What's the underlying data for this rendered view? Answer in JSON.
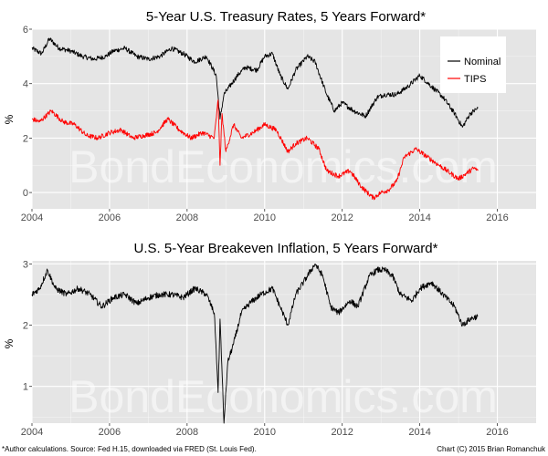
{
  "footer": {
    "source": "*Author calculations. Source: Fed H.15, downloaded via FRED (St. Louis Fed).",
    "credit": "Chart (C) 2015 Brian Romanchuk"
  },
  "colors": {
    "panel": "#e5e5e5",
    "grid": "#ffffff",
    "nominal": "#000000",
    "tips": "#ff0000"
  },
  "chart_data": [
    {
      "type": "line",
      "title": "5-Year U.S. Treasury Rates, 5 Years Forward*",
      "ylabel": "%",
      "xlabel": "",
      "xlim": [
        2004,
        2017
      ],
      "ylim": [
        -0.6,
        6
      ],
      "x_ticks": [
        2004,
        2006,
        2008,
        2010,
        2012,
        2014,
        2016
      ],
      "y_ticks": [
        0,
        2,
        4,
        6
      ],
      "watermark": "BondEconomics.com",
      "legend": {
        "position": "top-right",
        "entries": [
          "Nominal",
          "TIPS"
        ]
      },
      "series": [
        {
          "name": "Nominal",
          "color": "#000000",
          "points": [
            [
              2004.0,
              5.3
            ],
            [
              2004.25,
              5.1
            ],
            [
              2004.45,
              5.65
            ],
            [
              2004.7,
              5.3
            ],
            [
              2005.0,
              5.2
            ],
            [
              2005.3,
              5.0
            ],
            [
              2005.6,
              4.9
            ],
            [
              2005.9,
              5.0
            ],
            [
              2006.1,
              5.2
            ],
            [
              2006.4,
              5.3
            ],
            [
              2006.7,
              5.0
            ],
            [
              2007.0,
              4.9
            ],
            [
              2007.3,
              5.0
            ],
            [
              2007.6,
              5.3
            ],
            [
              2007.9,
              5.1
            ],
            [
              2008.2,
              4.8
            ],
            [
              2008.5,
              5.0
            ],
            [
              2008.75,
              4.3
            ],
            [
              2008.85,
              2.7
            ],
            [
              2008.95,
              3.6
            ],
            [
              2009.1,
              3.9
            ],
            [
              2009.3,
              4.3
            ],
            [
              2009.5,
              4.6
            ],
            [
              2009.8,
              4.5
            ],
            [
              2010.0,
              5.0
            ],
            [
              2010.2,
              5.1
            ],
            [
              2010.4,
              4.3
            ],
            [
              2010.6,
              3.8
            ],
            [
              2010.8,
              4.5
            ],
            [
              2011.1,
              5.0
            ],
            [
              2011.3,
              4.8
            ],
            [
              2011.6,
              3.6
            ],
            [
              2011.8,
              3.0
            ],
            [
              2012.0,
              3.3
            ],
            [
              2012.3,
              3.0
            ],
            [
              2012.6,
              2.8
            ],
            [
              2012.9,
              3.5
            ],
            [
              2013.1,
              3.6
            ],
            [
              2013.4,
              3.6
            ],
            [
              2013.7,
              3.9
            ],
            [
              2014.0,
              4.3
            ],
            [
              2014.3,
              3.9
            ],
            [
              2014.6,
              3.5
            ],
            [
              2014.9,
              2.9
            ],
            [
              2015.1,
              2.4
            ],
            [
              2015.3,
              2.9
            ],
            [
              2015.5,
              3.1
            ]
          ]
        },
        {
          "name": "TIPS",
          "color": "#ff0000",
          "points": [
            [
              2004.0,
              2.7
            ],
            [
              2004.2,
              2.6
            ],
            [
              2004.5,
              3.0
            ],
            [
              2004.8,
              2.6
            ],
            [
              2005.1,
              2.5
            ],
            [
              2005.4,
              2.1
            ],
            [
              2005.7,
              2.0
            ],
            [
              2006.0,
              2.2
            ],
            [
              2006.3,
              2.3
            ],
            [
              2006.6,
              2.0
            ],
            [
              2006.9,
              2.1
            ],
            [
              2007.2,
              2.2
            ],
            [
              2007.5,
              2.7
            ],
            [
              2007.8,
              2.3
            ],
            [
              2008.1,
              2.0
            ],
            [
              2008.4,
              2.2
            ],
            [
              2008.7,
              2.0
            ],
            [
              2008.8,
              3.4
            ],
            [
              2008.85,
              1.0
            ],
            [
              2008.9,
              2.9
            ],
            [
              2009.0,
              1.5
            ],
            [
              2009.2,
              2.5
            ],
            [
              2009.4,
              2.0
            ],
            [
              2009.7,
              2.2
            ],
            [
              2010.0,
              2.5
            ],
            [
              2010.3,
              2.3
            ],
            [
              2010.6,
              1.5
            ],
            [
              2010.8,
              1.8
            ],
            [
              2011.1,
              2.0
            ],
            [
              2011.4,
              1.6
            ],
            [
              2011.6,
              0.8
            ],
            [
              2011.9,
              0.6
            ],
            [
              2012.2,
              0.8
            ],
            [
              2012.5,
              0.2
            ],
            [
              2012.8,
              -0.2
            ],
            [
              2013.0,
              0.0
            ],
            [
              2013.2,
              0.1
            ],
            [
              2013.4,
              0.4
            ],
            [
              2013.6,
              1.3
            ],
            [
              2013.9,
              1.6
            ],
            [
              2014.2,
              1.3
            ],
            [
              2014.5,
              1.0
            ],
            [
              2014.8,
              0.7
            ],
            [
              2015.0,
              0.5
            ],
            [
              2015.2,
              0.7
            ],
            [
              2015.4,
              0.9
            ],
            [
              2015.5,
              0.8
            ]
          ]
        }
      ]
    },
    {
      "type": "line",
      "title": "U.S. 5-Year Breakeven Inflation, 5 Years Forward*",
      "ylabel": "%",
      "xlabel": "",
      "xlim": [
        2004,
        2017
      ],
      "ylim": [
        0.4,
        3.05
      ],
      "x_ticks": [
        2004,
        2006,
        2008,
        2010,
        2012,
        2014,
        2016
      ],
      "y_ticks": [
        1,
        2,
        3
      ],
      "watermark": "BondEconomics.com",
      "series": [
        {
          "name": "Breakeven",
          "color": "#000000",
          "points": [
            [
              2004.0,
              2.5
            ],
            [
              2004.2,
              2.6
            ],
            [
              2004.4,
              2.9
            ],
            [
              2004.6,
              2.6
            ],
            [
              2004.9,
              2.5
            ],
            [
              2005.2,
              2.6
            ],
            [
              2005.5,
              2.5
            ],
            [
              2005.8,
              2.3
            ],
            [
              2006.1,
              2.45
            ],
            [
              2006.4,
              2.5
            ],
            [
              2006.7,
              2.35
            ],
            [
              2007.0,
              2.45
            ],
            [
              2007.3,
              2.5
            ],
            [
              2007.6,
              2.5
            ],
            [
              2007.9,
              2.45
            ],
            [
              2008.2,
              2.6
            ],
            [
              2008.5,
              2.5
            ],
            [
              2008.7,
              2.2
            ],
            [
              2008.75,
              1.6
            ],
            [
              2008.8,
              0.9
            ],
            [
              2008.85,
              2.1
            ],
            [
              2008.95,
              0.4
            ],
            [
              2009.05,
              1.4
            ],
            [
              2009.2,
              1.7
            ],
            [
              2009.4,
              2.2
            ],
            [
              2009.6,
              2.35
            ],
            [
              2009.9,
              2.5
            ],
            [
              2010.2,
              2.6
            ],
            [
              2010.4,
              2.3
            ],
            [
              2010.6,
              2.0
            ],
            [
              2010.8,
              2.5
            ],
            [
              2011.0,
              2.7
            ],
            [
              2011.3,
              3.0
            ],
            [
              2011.5,
              2.8
            ],
            [
              2011.7,
              2.3
            ],
            [
              2011.9,
              2.2
            ],
            [
              2012.2,
              2.4
            ],
            [
              2012.4,
              2.3
            ],
            [
              2012.7,
              2.8
            ],
            [
              2012.9,
              2.9
            ],
            [
              2013.1,
              2.9
            ],
            [
              2013.3,
              2.8
            ],
            [
              2013.5,
              2.5
            ],
            [
              2013.8,
              2.4
            ],
            [
              2014.0,
              2.6
            ],
            [
              2014.3,
              2.7
            ],
            [
              2014.6,
              2.5
            ],
            [
              2014.9,
              2.3
            ],
            [
              2015.1,
              2.0
            ],
            [
              2015.3,
              2.1
            ],
            [
              2015.5,
              2.15
            ]
          ]
        }
      ]
    }
  ]
}
